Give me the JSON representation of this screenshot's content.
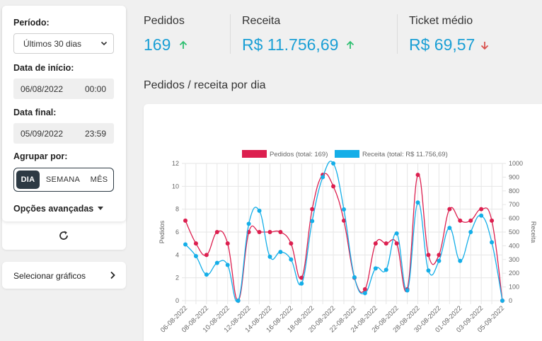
{
  "filters": {
    "period_label": "Período:",
    "period_value": "Últimos 30 dias",
    "start_label": "Data de início:",
    "start_date": "06/08/2022",
    "start_time": "00:00",
    "end_label": "Data final:",
    "end_date": "05/09/2022",
    "end_time": "23:59",
    "group_label": "Agrupar por:",
    "group_options": [
      "DIA",
      "SEMANA",
      "MÊS"
    ],
    "group_selected": "DIA",
    "advanced_label": "Opções avançadas"
  },
  "charts_button_label": "Selecionar gráficos",
  "kpis": [
    {
      "title": "Pedidos",
      "value": "169",
      "trend": "up",
      "trend_color": "#2fbf71"
    },
    {
      "title": "Receita",
      "value": "R$ 11.756,69",
      "trend": "up",
      "trend_color": "#2fbf71"
    },
    {
      "title": "Ticket médio",
      "value": "R$ 69,57",
      "trend": "down",
      "trend_color": "#d9534f"
    }
  ],
  "section_title": "Pedidos / receita por dia",
  "colors": {
    "accent": "#1a9fd5",
    "pedidos": "#dc1f4f",
    "receita": "#14aee8",
    "dark": "#2d3a44"
  },
  "chart_data": {
    "type": "line",
    "x": [
      "06-08-2022",
      "07-08-2022",
      "08-08-2022",
      "09-08-2022",
      "10-08-2022",
      "11-08-2022",
      "12-08-2022",
      "13-08-2022",
      "14-08-2022",
      "15-08-2022",
      "16-08-2022",
      "17-08-2022",
      "18-08-2022",
      "19-08-2022",
      "20-08-2022",
      "21-08-2022",
      "22-08-2022",
      "23-08-2022",
      "24-08-2022",
      "25-08-2022",
      "26-08-2022",
      "27-08-2022",
      "28-08-2022",
      "29-08-2022",
      "30-08-2022",
      "31-08-2022",
      "01-09-2022",
      "02-09-2022",
      "03-09-2022",
      "04-09-2022",
      "05-09-2022"
    ],
    "x_tick_labels": [
      "06-08-2022",
      "08-08-2022",
      "10-08-2022",
      "12-08-2022",
      "14-08-2022",
      "16-08-2022",
      "18-08-2022",
      "20-08-2022",
      "22-08-2022",
      "24-08-2022",
      "26-08-2022",
      "28-08-2022",
      "30-08-2022",
      "01-09-2022",
      "03-09-2022",
      "05-09-2022"
    ],
    "series": [
      {
        "name": "Pedidos (total: 169)",
        "axis": "left",
        "color": "#dc1f4f",
        "values": [
          7,
          5,
          4,
          6,
          5,
          0,
          6,
          6,
          6,
          6,
          5,
          2,
          8,
          11,
          10,
          7,
          2,
          1,
          5,
          5,
          5,
          1,
          11,
          4,
          4,
          8,
          7,
          7,
          8,
          7,
          0
        ]
      },
      {
        "name": "Receita (total: R$ 11.756,69)",
        "axis": "right",
        "color": "#14aee8",
        "values": [
          410,
          325,
          190,
          275,
          260,
          0,
          560,
          655,
          320,
          355,
          300,
          125,
          580,
          900,
          1000,
          665,
          170,
          55,
          235,
          225,
          490,
          75,
          715,
          220,
          290,
          530,
          290,
          500,
          620,
          425,
          0
        ]
      }
    ],
    "ylabel": "Pedidos",
    "y2label": "Receita",
    "ylim": [
      0,
      12
    ],
    "y2lim": [
      0,
      1000
    ],
    "y_ticks": [
      "0",
      "2",
      "4",
      "6",
      "8",
      "10",
      "12"
    ],
    "y2_ticks": [
      "0",
      "100",
      "200",
      "300",
      "400",
      "500",
      "600",
      "700",
      "800",
      "900",
      "1000"
    ],
    "grid": true,
    "legend_position": "top"
  }
}
